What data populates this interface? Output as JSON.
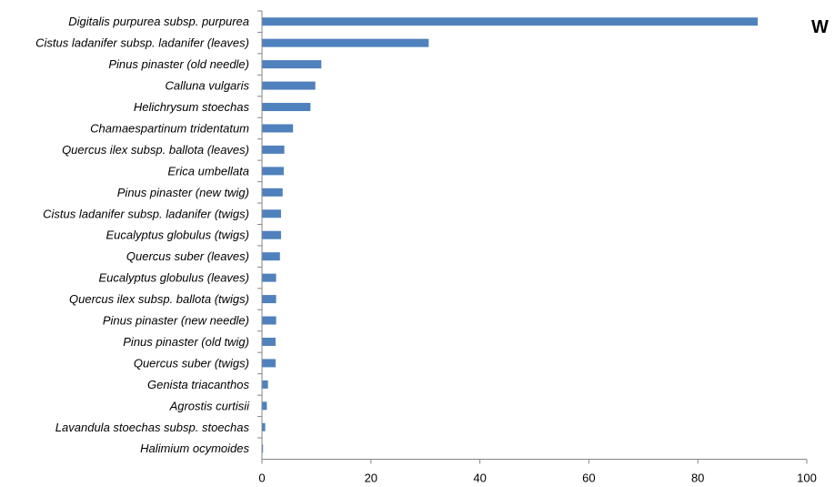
{
  "chart_data": {
    "type": "bar",
    "orientation": "horizontal",
    "title": "",
    "xlabel": "",
    "ylabel": "",
    "corner_text": "W",
    "categories": [
      "Digitalis purpurea subsp. purpurea",
      "Cistus ladanifer subsp. ladanifer (leaves)",
      "Pinus pinaster (old needle)",
      "Calluna vulgaris",
      "Helichrysum stoechas",
      "Chamaespartinum tridentatum",
      "Quercus ilex subsp. ballota (leaves)",
      "Erica umbellata",
      "Pinus pinaster (new twig)",
      "Cistus ladanifer subsp. ladanifer (twigs)",
      "Eucalyptus globulus (twigs)",
      "Quercus suber (leaves)",
      "Eucalyptus globulus (leaves)",
      "Quercus ilex subsp. ballota (twigs)",
      "Pinus pinaster (new needle)",
      "Pinus pinaster (old twig)",
      "Quercus suber (twigs)",
      "Genista triacanthos",
      "Agrostis curtisii",
      "Lavandula stoechas subsp. stoechas",
      "Halimium ocymoides"
    ],
    "values": [
      91,
      30.6,
      10.9,
      9.8,
      8.9,
      5.7,
      4.1,
      4.0,
      3.8,
      3.5,
      3.5,
      3.3,
      2.6,
      2.6,
      2.6,
      2.5,
      2.5,
      1.1,
      0.9,
      0.6,
      0.2
    ],
    "xlim": [
      0,
      100
    ],
    "xticks": [
      "0",
      "20",
      "40",
      "60",
      "80",
      "100"
    ],
    "grid": false,
    "bar_color": "#4f81bd"
  }
}
